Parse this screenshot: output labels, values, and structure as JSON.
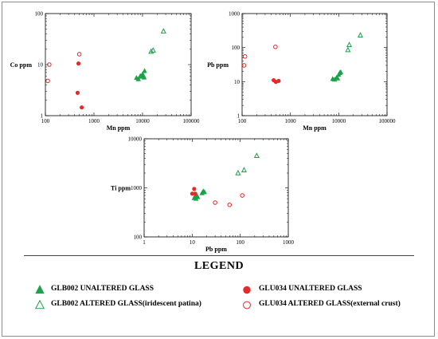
{
  "colors": {
    "glb": "#1aa34a",
    "glu": "#e8282b"
  },
  "chart_data": [
    {
      "type": "scatter",
      "id": "co-mn",
      "xlabel": "Mn ppm",
      "ylabel": "Co ppm",
      "xscale": "log",
      "yscale": "log",
      "xlim": [
        100,
        100000
      ],
      "ylim": [
        1,
        100
      ],
      "xticks": [
        "100",
        "1000",
        "10000",
        "100000"
      ],
      "yticks": [
        "1",
        "10",
        "100"
      ],
      "series": [
        {
          "symbol": "filled-triangle",
          "color": "glb",
          "points": [
            [
              7500,
              5.5
            ],
            [
              8200,
              5.2
            ],
            [
              9000,
              6.0
            ],
            [
              9500,
              5.8
            ],
            [
              10000,
              6.5
            ],
            [
              10500,
              6.0
            ],
            [
              11000,
              7.5
            ],
            [
              10800,
              5.6
            ]
          ]
        },
        {
          "symbol": "open-triangle",
          "color": "glb",
          "points": [
            [
              15000,
              18
            ],
            [
              16500,
              19
            ],
            [
              27000,
              45
            ]
          ]
        },
        {
          "symbol": "filled-circle",
          "color": "glu",
          "points": [
            [
              480,
              10.5
            ],
            [
              460,
              2.8
            ],
            [
              560,
              1.45
            ]
          ]
        },
        {
          "symbol": "open-circle",
          "color": "glu",
          "points": [
            [
              120,
              10
            ],
            [
              112,
              4.8
            ],
            [
              500,
              16
            ]
          ]
        }
      ]
    },
    {
      "type": "scatter",
      "id": "pb-mn",
      "xlabel": "Mn ppm",
      "ylabel": "Pb ppm",
      "xscale": "log",
      "yscale": "log",
      "xlim": [
        100,
        100000
      ],
      "ylim": [
        1,
        1000
      ],
      "xticks": [
        "100",
        "1000",
        "10000",
        "100000"
      ],
      "yticks": [
        "1",
        "10",
        "100",
        "1000"
      ],
      "series": [
        {
          "symbol": "filled-triangle",
          "color": "glb",
          "points": [
            [
              7500,
              12
            ],
            [
              8200,
              11.5
            ],
            [
              9000,
              13
            ],
            [
              9500,
              12.5
            ],
            [
              10000,
              16
            ],
            [
              10500,
              18
            ],
            [
              11000,
              19
            ]
          ]
        },
        {
          "symbol": "open-triangle",
          "color": "glb",
          "points": [
            [
              15500,
              85
            ],
            [
              16500,
              120
            ],
            [
              28000,
              230
            ]
          ]
        },
        {
          "symbol": "filled-circle",
          "color": "glu",
          "points": [
            [
              450,
              11
            ],
            [
              500,
              9.8
            ],
            [
              570,
              10.5
            ]
          ]
        },
        {
          "symbol": "open-circle",
          "color": "glu",
          "points": [
            [
              115,
              55
            ],
            [
              110,
              30
            ],
            [
              490,
              105
            ]
          ]
        }
      ]
    },
    {
      "type": "scatter",
      "id": "ti-pb",
      "xlabel": "Pb ppm",
      "ylabel": "Ti ppm",
      "xscale": "log",
      "yscale": "log",
      "xlim": [
        1,
        1000
      ],
      "ylim": [
        100,
        10000
      ],
      "xticks": [
        "1",
        "10",
        "100",
        "1000"
      ],
      "yticks": [
        "100",
        "1000",
        "10000"
      ],
      "series": [
        {
          "symbol": "filled-triangle",
          "color": "glb",
          "points": [
            [
              11,
              620
            ],
            [
              12,
              600
            ],
            [
              13,
              650
            ],
            [
              12.5,
              700
            ],
            [
              16,
              780
            ],
            [
              17,
              850
            ],
            [
              18,
              820
            ],
            [
              11.5,
              680
            ]
          ]
        },
        {
          "symbol": "open-triangle",
          "color": "glb",
          "points": [
            [
              90,
              2000
            ],
            [
              120,
              2300
            ],
            [
              220,
              4500
            ]
          ]
        },
        {
          "symbol": "filled-circle",
          "color": "glu",
          "points": [
            [
              10,
              760
            ],
            [
              11,
              950
            ],
            [
              11.5,
              760
            ]
          ]
        },
        {
          "symbol": "open-circle",
          "color": "glu",
          "points": [
            [
              30,
              500
            ],
            [
              60,
              450
            ],
            [
              110,
              700
            ]
          ]
        }
      ]
    }
  ],
  "legend": {
    "title": "LEGEND",
    "items": [
      {
        "symbol": "filled-triangle",
        "color": "glb",
        "label": "GLB002 UNALTERED  GLASS"
      },
      {
        "symbol": "open-triangle",
        "color": "glb",
        "label": "GLB002  ALTERED  GLASS(iridescent patina)"
      },
      {
        "symbol": "filled-circle",
        "color": "glu",
        "label": "GLU034 UNALTERED  GLASS"
      },
      {
        "symbol": "open-circle",
        "color": "glu",
        "label": "GLU034  ALTERED  GLASS(external crust)"
      }
    ]
  }
}
